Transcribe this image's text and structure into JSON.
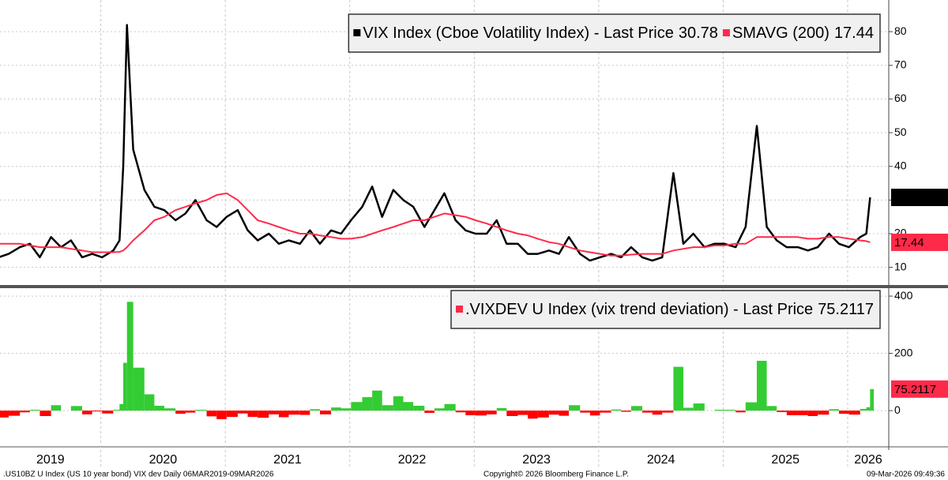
{
  "chart_data": [
    {
      "type": "line",
      "x": [
        2019.18,
        2019.26,
        2019.35,
        2019.43,
        2019.51,
        2019.6,
        2019.68,
        2019.76,
        2019.85,
        2019.93,
        2020.01,
        2020.1,
        2020.15,
        2020.18,
        2020.21,
        2020.26,
        2020.35,
        2020.43,
        2020.51,
        2020.6,
        2020.68,
        2020.76,
        2020.85,
        2020.93,
        2021.01,
        2021.1,
        2021.18,
        2021.26,
        2021.35,
        2021.43,
        2021.51,
        2021.6,
        2021.68,
        2021.76,
        2021.85,
        2021.93,
        2022.01,
        2022.1,
        2022.18,
        2022.26,
        2022.35,
        2022.43,
        2022.51,
        2022.6,
        2022.68,
        2022.76,
        2022.85,
        2022.93,
        2023.01,
        2023.1,
        2023.18,
        2023.26,
        2023.35,
        2023.43,
        2023.51,
        2023.6,
        2023.68,
        2023.76,
        2023.85,
        2023.93,
        2024.01,
        2024.1,
        2024.18,
        2024.26,
        2024.35,
        2024.43,
        2024.51,
        2024.6,
        2024.68,
        2024.76,
        2024.85,
        2024.93,
        2025.01,
        2025.1,
        2025.18,
        2025.27,
        2025.35,
        2025.43,
        2025.51,
        2025.6,
        2025.68,
        2025.76,
        2025.85,
        2025.93,
        2026.01,
        2026.1,
        2026.15,
        2026.18
      ],
      "series": [
        {
          "name": "VIX Index (Cboe Volatility Index) - Last Price",
          "color": "#000000",
          "values": [
            13,
            14,
            16,
            17,
            13,
            19,
            16,
            18,
            13,
            14,
            13,
            15,
            18,
            40,
            82,
            45,
            33,
            28,
            27,
            24,
            26,
            30,
            24,
            22,
            25,
            27,
            21,
            18,
            20,
            17,
            18,
            17,
            21,
            17,
            21,
            20,
            24,
            28,
            34,
            25,
            33,
            30,
            28,
            22,
            27,
            32,
            24,
            21,
            20,
            20,
            24,
            17,
            17,
            14,
            14,
            15,
            14,
            19,
            14,
            12,
            13,
            14,
            13,
            16,
            13,
            12,
            13,
            38,
            17,
            20,
            16,
            17,
            17,
            16,
            22,
            52,
            22,
            18,
            16,
            16,
            15,
            16,
            20,
            17,
            16,
            19,
            20,
            30.78
          ]
        },
        {
          "name": "SMAVG (200)",
          "color": "#ff2a4a",
          "values": [
            17,
            17,
            17,
            16.5,
            16,
            16,
            16,
            15.5,
            15,
            14.5,
            14.5,
            14.5,
            14.6,
            15,
            16,
            18,
            21,
            24,
            25,
            27,
            28,
            29,
            30,
            31.5,
            32,
            30,
            27,
            24,
            23,
            22,
            21,
            20,
            20,
            19.5,
            19,
            18.5,
            18.5,
            19,
            20,
            21,
            22,
            23,
            24,
            24,
            25,
            26,
            25.5,
            25,
            24,
            23,
            22,
            21,
            20,
            19.5,
            18.5,
            17.5,
            17,
            16,
            15,
            14.5,
            14,
            13.5,
            13.5,
            13.8,
            14,
            14,
            14,
            15,
            15.5,
            16,
            16,
            16.5,
            16.5,
            17,
            17,
            19,
            19,
            19,
            19,
            19,
            18.5,
            18.5,
            19,
            19,
            18.5,
            18,
            17.8,
            17.44
          ]
        }
      ],
      "xlim": [
        2019.19,
        2026.33
      ],
      "ylim": [
        5,
        89.4
      ],
      "yticks": [
        10,
        20,
        30,
        40,
        50,
        60,
        70,
        80
      ],
      "grid": true
    },
    {
      "type": "bar",
      "x": [
        2019.18,
        2019.26,
        2019.35,
        2019.43,
        2019.51,
        2019.6,
        2019.68,
        2019.76,
        2019.85,
        2019.93,
        2020.01,
        2020.1,
        2020.15,
        2020.18,
        2020.21,
        2020.26,
        2020.35,
        2020.43,
        2020.51,
        2020.6,
        2020.68,
        2020.76,
        2020.85,
        2020.93,
        2021.01,
        2021.1,
        2021.18,
        2021.26,
        2021.35,
        2021.43,
        2021.51,
        2021.6,
        2021.68,
        2021.76,
        2021.85,
        2021.93,
        2022.01,
        2022.1,
        2022.18,
        2022.26,
        2022.35,
        2022.43,
        2022.51,
        2022.6,
        2022.68,
        2022.76,
        2022.85,
        2022.93,
        2023.01,
        2023.1,
        2023.18,
        2023.26,
        2023.35,
        2023.43,
        2023.51,
        2023.6,
        2023.68,
        2023.76,
        2023.85,
        2023.93,
        2024.01,
        2024.1,
        2024.18,
        2024.26,
        2024.35,
        2024.43,
        2024.51,
        2024.6,
        2024.68,
        2024.76,
        2024.85,
        2024.93,
        2025.01,
        2025.1,
        2025.18,
        2025.27,
        2025.35,
        2025.43,
        2025.51,
        2025.6,
        2025.68,
        2025.76,
        2025.85,
        2025.93,
        2026.01,
        2026.1,
        2026.15,
        2026.18
      ],
      "series": [
        {
          "name": ".VIXDEV U Index (vix trend deviation) - Last Price",
          "color": "#33cc33",
          "negative_color": "#ff0000",
          "tag_color": "#ff2a4a",
          "values": [
            -24,
            -18,
            -6,
            3,
            -19,
            19,
            0,
            16,
            -13,
            -3,
            -10,
            3,
            23,
            167,
            380,
            150,
            57,
            17,
            8,
            -11,
            -7,
            3,
            -20,
            -30,
            -22,
            -10,
            -22,
            -25,
            -13,
            -23,
            -14,
            -15,
            5,
            -13,
            11,
            8,
            30,
            47,
            70,
            19,
            50,
            30,
            17,
            -8,
            8,
            23,
            -6,
            -16,
            -17,
            -13,
            9,
            -19,
            -15,
            -28,
            -24,
            -14,
            -18,
            19,
            -7,
            -17,
            -7,
            4,
            -4,
            16,
            -7,
            -14,
            -7,
            153,
            10,
            25,
            0,
            3,
            3,
            -6,
            29,
            174,
            16,
            -5,
            -16,
            -16,
            -19,
            -14,
            5,
            -11,
            -14,
            6,
            12,
            75.2117
          ]
        }
      ],
      "xlim": [
        2019.19,
        2026.33
      ],
      "xticks": [
        {
          "value": 2019,
          "label": "2019"
        },
        {
          "value": 2020,
          "label": "2020"
        },
        {
          "value": 2021,
          "label": "2021"
        },
        {
          "value": 2022,
          "label": "2022"
        },
        {
          "value": 2023,
          "label": "2023"
        },
        {
          "value": 2024,
          "label": "2024"
        },
        {
          "value": 2025,
          "label": "2025"
        },
        {
          "value": 2026,
          "label": "2026"
        }
      ],
      "ylim": [
        -110,
        425
      ],
      "yticks": [
        0,
        200,
        400
      ],
      "grid": true
    }
  ],
  "footer": {
    "left": ".US10BZ U Index (US 10 year bond) VIX dev Daily 06MAR2019-09MAR2026",
    "center": "Copyright© 2026 Bloomberg Finance L.P.",
    "right": "09-Mar-2026 09:49:36"
  }
}
